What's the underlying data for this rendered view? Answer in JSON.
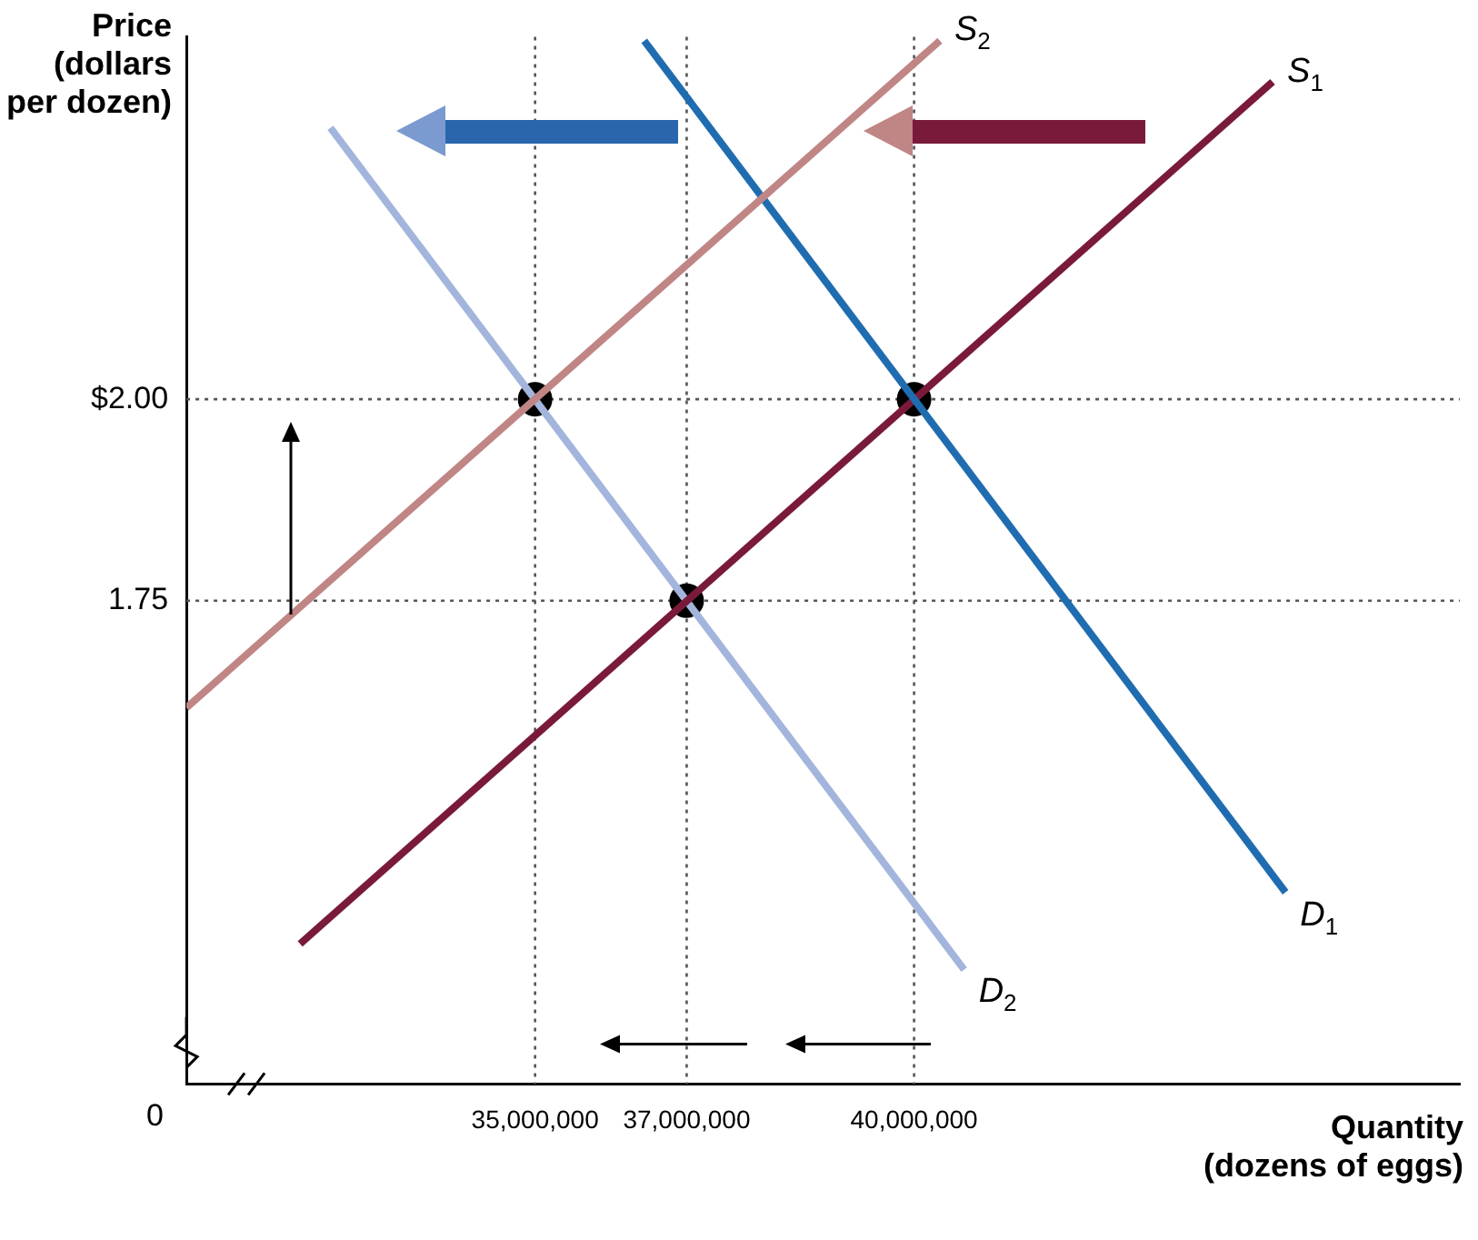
{
  "chart_data": {
    "type": "line",
    "xlabel": "Quantity\n(dozens of eggs)",
    "ylabel": "Price\n(dollars\nper dozen)",
    "xlim": [
      30400000,
      47200000
    ],
    "ylim": [
      1.15,
      2.45
    ],
    "xticks": [
      {
        "value": 35000000,
        "label": "35,000,000"
      },
      {
        "value": 37000000,
        "label": "37,000,000"
      },
      {
        "value": 40000000,
        "label": "40,000,000"
      }
    ],
    "yticks": [
      {
        "value": 1.75,
        "label": "1.75"
      },
      {
        "value": 2,
        "label": "$2.00"
      }
    ],
    "grid": false,
    "legend": false,
    "line_style": "solid",
    "marker": "none",
    "series": [
      {
        "name": "S$_{2}$",
        "color": "#c08585",
        "x": [
          30400000,
          40340000
        ],
        "values": [
          1.617,
          2.445
        ]
      },
      {
        "name": "D$_{1}$",
        "color": "#1f6db0",
        "x": [
          36440000,
          44900000
        ],
        "values": [
          2.445,
          1.388
        ]
      },
      {
        "name": "S$_{1}$",
        "color": "#7a1a3a",
        "x": [
          31900000,
          44730000
        ],
        "values": [
          1.324,
          2.394
        ]
      },
      {
        "name": "D$_{2}$",
        "color": "#a3b5dc",
        "x": [
          32300000,
          40660000
        ],
        "values": [
          2.337,
          1.292
        ]
      },
      {
        "type": "scatter",
        "marker": "circle",
        "color": "#000000",
        "x": [
          35000000,
          37000000,
          40000000
        ],
        "values": [
          2,
          1.75,
          2
        ]
      }
    ],
    "ref_lines": [
      {
        "axis": "y",
        "value": 2,
        "line_style": "dotted",
        "color": "#555555"
      },
      {
        "axis": "y",
        "value": 1.75,
        "line_style": "dotted",
        "color": "#555555"
      },
      {
        "axis": "x",
        "value": 35000000,
        "line_style": "dotted",
        "color": "#555555"
      },
      {
        "axis": "x",
        "value": 37000000,
        "line_style": "dotted",
        "color": "#555555"
      },
      {
        "axis": "x",
        "value": 40000000,
        "line_style": "dotted",
        "color": "#555555"
      }
    ],
    "annotations": [
      "0"
    ]
  }
}
